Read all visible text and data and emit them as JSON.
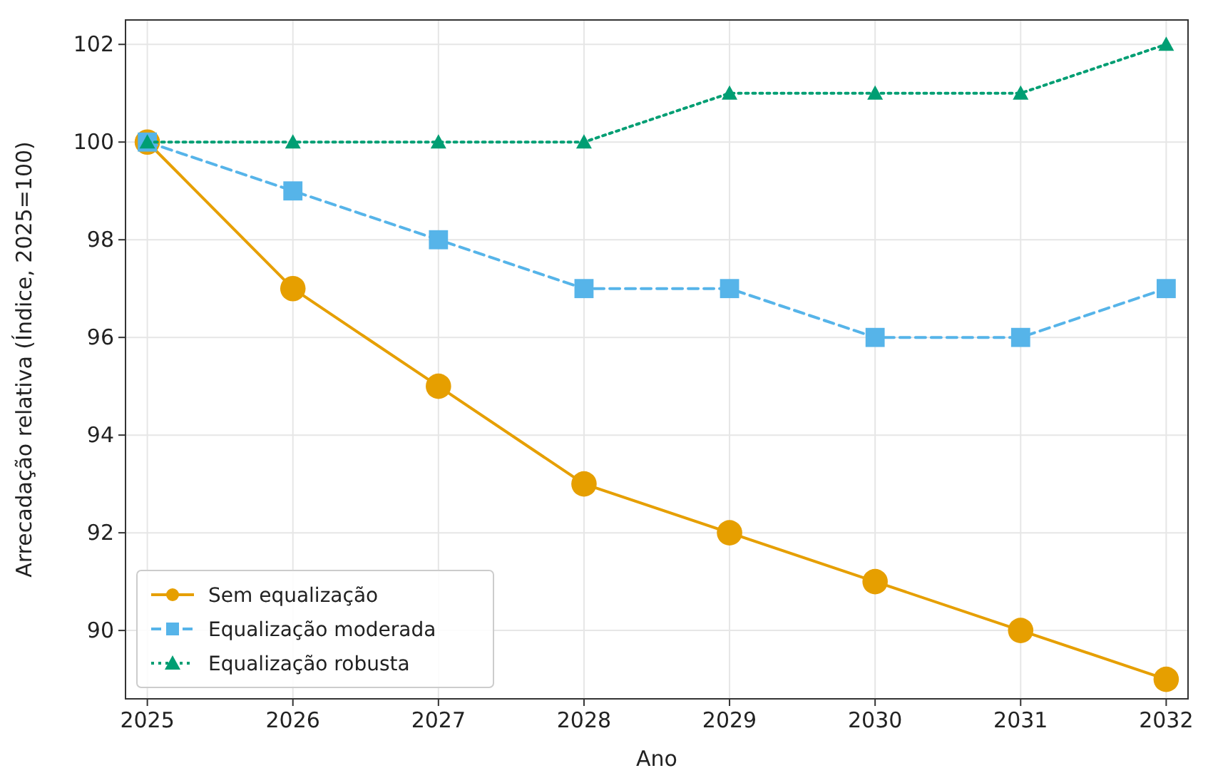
{
  "chart_data": {
    "type": "line",
    "xlabel": "Ano",
    "ylabel": "Arrecadação relativa (Índice, 2025=100)",
    "x": [
      2025,
      2026,
      2027,
      2028,
      2029,
      2030,
      2031,
      2032
    ],
    "series": [
      {
        "name": "Sem equalização",
        "color": "#e69f00",
        "values": [
          100,
          97,
          95,
          93,
          92,
          91,
          90,
          89
        ],
        "marker": "circle",
        "line_style": "solid"
      },
      {
        "name": "Equalização moderada",
        "color": "#56b4e9",
        "values": [
          100,
          99,
          98,
          97,
          97,
          96,
          96,
          97
        ],
        "marker": "square",
        "line_style": "dashed"
      },
      {
        "name": "Equalização robusta",
        "color": "#009e73",
        "values": [
          100,
          100,
          100,
          100,
          101,
          101,
          101,
          102
        ],
        "marker": "triangle",
        "line_style": "dotted"
      }
    ],
    "xlim": [
      2024.85,
      2032.15
    ],
    "xticks": [
      2025,
      2026,
      2027,
      2028,
      2029,
      2030,
      2031,
      2032
    ],
    "ylim": [
      88.6,
      102.5
    ],
    "yticks": [
      90,
      92,
      94,
      96,
      98,
      100,
      102
    ],
    "grid": true,
    "legend": "bottom left"
  }
}
